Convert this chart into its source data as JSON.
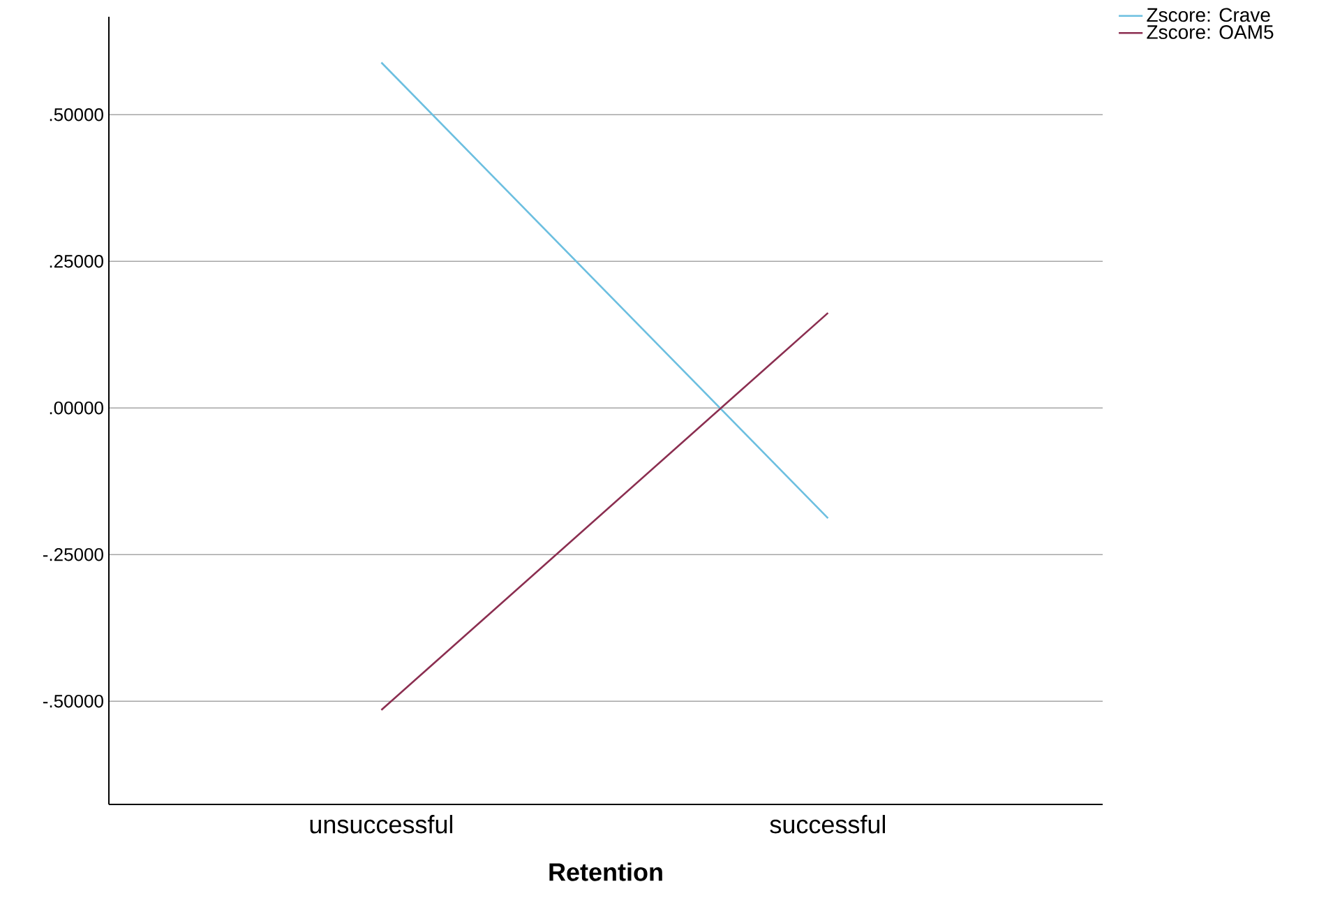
{
  "chart_data": {
    "type": "line",
    "xlabel": "Retention",
    "categories": [
      "unsuccessful",
      "successful"
    ],
    "series": [
      {
        "name": "Zscore:  Crave",
        "color": "#6cbfe0",
        "values": [
          0.589,
          -0.188
        ]
      },
      {
        "name": "Zscore:  OAM5",
        "color": "#8b2e50",
        "values": [
          -0.515,
          0.162
        ]
      }
    ],
    "ylim": [
      -0.676,
      0.667
    ],
    "yticks": [
      {
        "value": -0.5,
        "label": "-.50000"
      },
      {
        "value": -0.25,
        "label": "-.25000"
      },
      {
        "value": 0,
        "label": ".00000"
      },
      {
        "value": 0.25,
        "label": ".25000"
      },
      {
        "value": 0.5,
        "label": ".50000"
      }
    ],
    "grid": "y",
    "legend": "top right",
    "marker": "none",
    "line_style": "solid"
  }
}
